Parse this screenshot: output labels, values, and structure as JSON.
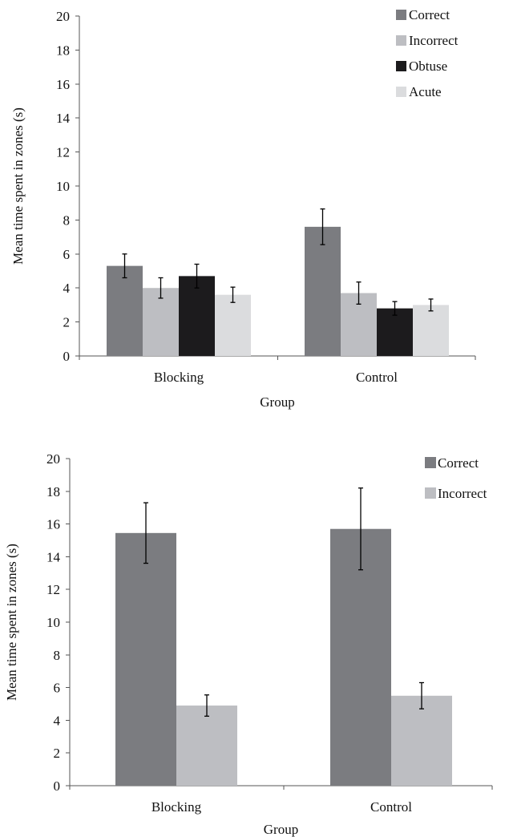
{
  "chart_data": [
    {
      "type": "bar",
      "title": "",
      "xlabel": "Group",
      "ylabel": "Mean time spent in zones (s)",
      "categories": [
        "Blocking",
        "Control"
      ],
      "ylim": [
        0,
        20
      ],
      "yticks": [
        0,
        2,
        4,
        6,
        8,
        10,
        12,
        14,
        16,
        18,
        20
      ],
      "grid": false,
      "legend_position": "top-right",
      "series": [
        {
          "name": "Correct",
          "color": "#7b7c80",
          "values": [
            5.3,
            7.6
          ],
          "errors": [
            0.7,
            1.05
          ]
        },
        {
          "name": "Incorrect",
          "color": "#bdbec2",
          "values": [
            4.0,
            3.7
          ],
          "errors": [
            0.6,
            0.65
          ]
        },
        {
          "name": "Obtuse",
          "color": "#1c1b1d",
          "values": [
            4.7,
            2.8
          ],
          "errors": [
            0.7,
            0.4
          ]
        },
        {
          "name": "Acute",
          "color": "#dbdcde",
          "values": [
            3.6,
            3.0
          ],
          "errors": [
            0.45,
            0.35
          ]
        }
      ]
    },
    {
      "type": "bar",
      "title": "",
      "xlabel": "Group",
      "ylabel": "Mean time spent in zones (s)",
      "categories": [
        "Blocking",
        "Control"
      ],
      "ylim": [
        0,
        20
      ],
      "yticks": [
        0,
        2,
        4,
        6,
        8,
        10,
        12,
        14,
        16,
        18,
        20
      ],
      "grid": false,
      "legend_position": "top-right",
      "series": [
        {
          "name": "Correct",
          "color": "#7b7c80",
          "values": [
            15.45,
            15.7
          ],
          "errors": [
            1.85,
            2.5
          ]
        },
        {
          "name": "Incorrect",
          "color": "#bdbec2",
          "values": [
            4.9,
            5.5
          ],
          "errors": [
            0.65,
            0.8
          ]
        }
      ]
    }
  ]
}
